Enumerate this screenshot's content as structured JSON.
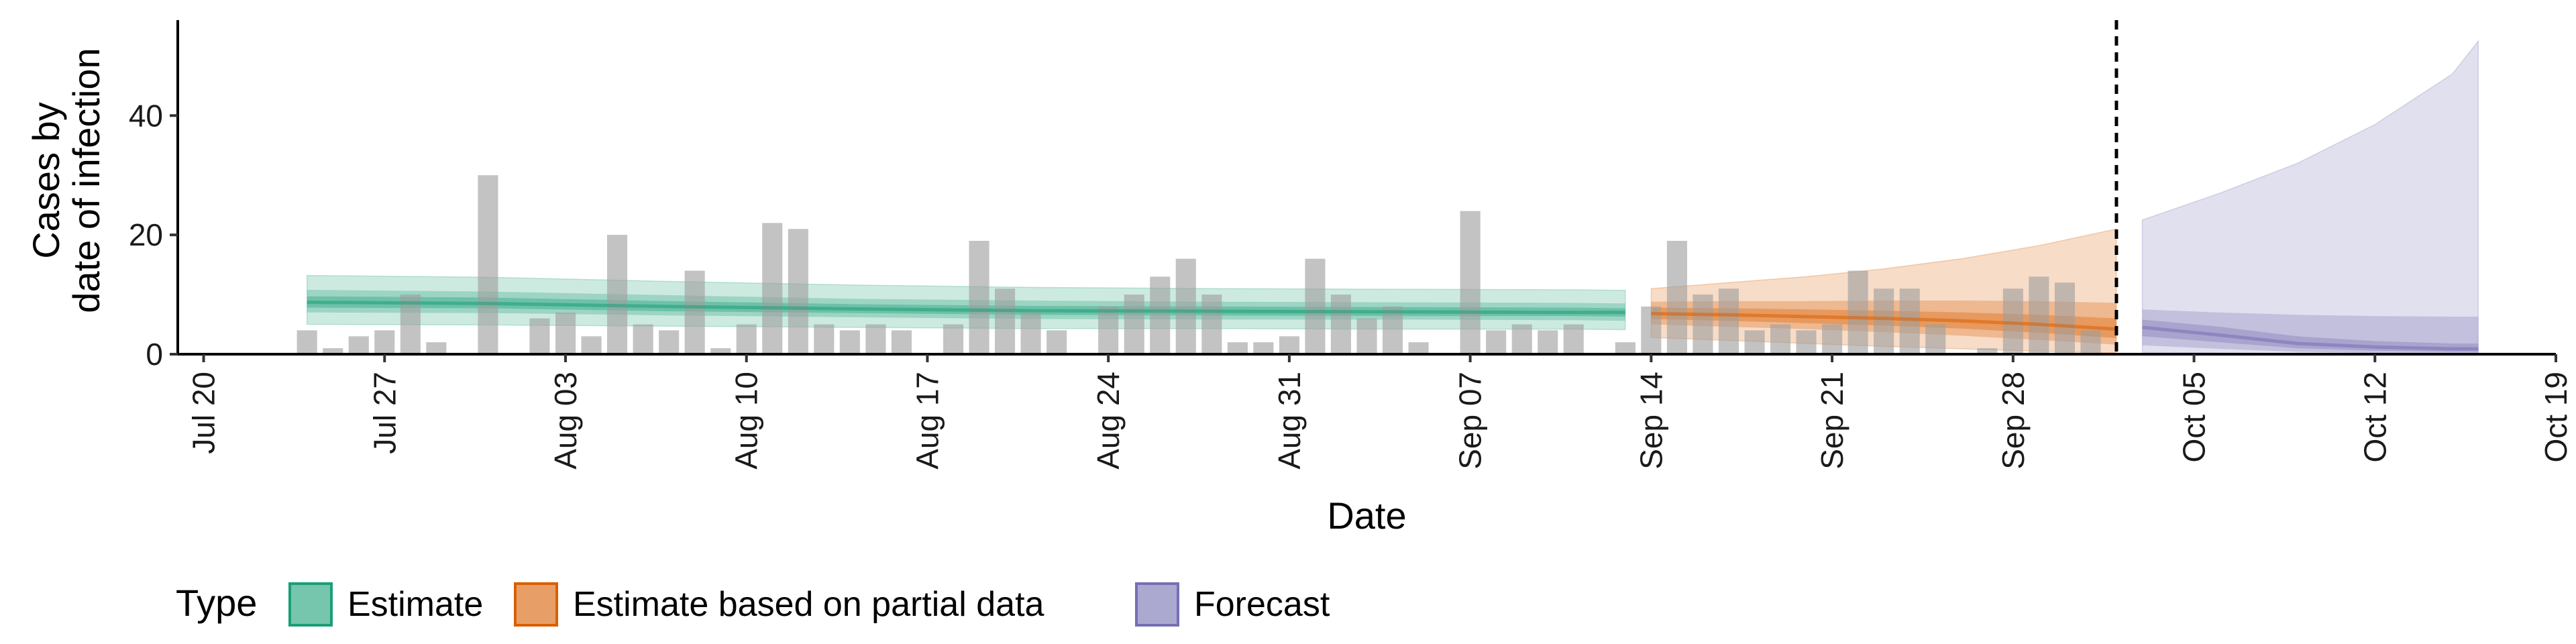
{
  "chart_data": {
    "type": "bar",
    "xlabel": "Date",
    "ylabel_lines": [
      "Cases by",
      "date of infection"
    ],
    "x_range": [
      "2020-07-19",
      "2020-10-19"
    ],
    "ylim": [
      0,
      56
    ],
    "y_ticks": [
      0,
      20,
      40
    ],
    "x_ticks": [
      {
        "date": "2020-07-20",
        "label": "Jul 20"
      },
      {
        "date": "2020-07-27",
        "label": "Jul 27"
      },
      {
        "date": "2020-08-03",
        "label": "Aug 03"
      },
      {
        "date": "2020-08-10",
        "label": "Aug 10"
      },
      {
        "date": "2020-08-17",
        "label": "Aug 17"
      },
      {
        "date": "2020-08-24",
        "label": "Aug 24"
      },
      {
        "date": "2020-08-31",
        "label": "Aug 31"
      },
      {
        "date": "2020-09-07",
        "label": "Sep 07"
      },
      {
        "date": "2020-09-14",
        "label": "Sep 14"
      },
      {
        "date": "2020-09-21",
        "label": "Sep 21"
      },
      {
        "date": "2020-09-28",
        "label": "Sep 28"
      },
      {
        "date": "2020-10-05",
        "label": "Oct 05"
      },
      {
        "date": "2020-10-12",
        "label": "Oct 12"
      },
      {
        "date": "2020-10-19",
        "label": "Oct 19"
      }
    ],
    "bars_start_date": "2020-07-24",
    "bar_values": [
      4,
      1,
      3,
      4,
      10,
      2,
      0,
      30,
      0,
      6,
      7,
      3,
      20,
      5,
      4,
      14,
      1,
      5,
      22,
      21,
      5,
      4,
      5,
      4,
      0,
      5,
      19,
      11,
      7,
      4,
      0,
      8,
      10,
      13,
      16,
      10,
      2,
      2,
      3,
      16,
      10,
      6,
      8,
      2,
      0,
      24,
      4,
      5,
      4,
      5,
      0,
      2,
      8,
      19,
      10,
      11,
      4,
      5,
      4,
      5,
      14,
      11,
      11,
      5,
      0,
      1,
      11,
      13,
      12,
      4
    ],
    "cutoff_date": "2020-10-02",
    "series": [
      {
        "name": "Estimate",
        "color": "#1b9e77",
        "dates": [
          "2020-07-24",
          "2020-07-31",
          "2020-08-07",
          "2020-08-14",
          "2020-08-21",
          "2020-08-28",
          "2020-09-04",
          "2020-09-11",
          "2020-09-13"
        ],
        "median": [
          8.7,
          8.5,
          8.0,
          7.6,
          7.3,
          7.2,
          7.1,
          7.0,
          7.0
        ],
        "inner_lower": [
          7.8,
          7.7,
          7.2,
          6.9,
          6.6,
          6.5,
          6.4,
          6.4,
          6.3
        ],
        "inner_upper": [
          9.7,
          9.5,
          8.9,
          8.4,
          8.1,
          8.0,
          7.9,
          7.8,
          7.7
        ],
        "mid_lower": [
          7.0,
          6.9,
          6.5,
          6.2,
          5.9,
          5.8,
          5.8,
          5.7,
          5.6
        ],
        "mid_upper": [
          10.8,
          10.5,
          9.9,
          9.3,
          9.0,
          8.8,
          8.7,
          8.6,
          8.5
        ],
        "outer_lower": [
          5.0,
          4.9,
          4.7,
          4.5,
          4.3,
          4.3,
          4.2,
          4.2,
          4.1
        ],
        "outer_upper": [
          13.2,
          12.9,
          12.2,
          11.6,
          11.2,
          11.0,
          10.9,
          10.8,
          10.7
        ]
      },
      {
        "name": "Estimate based on partial data",
        "color": "#d95f02",
        "dates": [
          "2020-09-14",
          "2020-09-17",
          "2020-09-20",
          "2020-09-23",
          "2020-09-26",
          "2020-09-29",
          "2020-10-02"
        ],
        "median": [
          6.8,
          6.6,
          6.3,
          6.0,
          5.6,
          5.0,
          4.2
        ],
        "inner_lower": [
          5.9,
          5.6,
          5.2,
          4.8,
          4.3,
          3.6,
          2.7
        ],
        "inner_upper": [
          7.8,
          7.7,
          7.5,
          7.3,
          7.0,
          6.6,
          6.0
        ],
        "mid_lower": [
          5.0,
          4.6,
          4.2,
          3.7,
          3.1,
          2.4,
          1.6
        ],
        "mid_upper": [
          8.8,
          8.9,
          8.9,
          9.0,
          9.0,
          8.9,
          8.6
        ],
        "outer_lower": [
          2.8,
          2.3,
          1.8,
          1.3,
          0.9,
          0.5,
          0.2
        ],
        "outer_upper": [
          11.0,
          12.0,
          13.0,
          14.3,
          16.0,
          18.2,
          21.0
        ]
      },
      {
        "name": "Forecast",
        "color": "#7570b3",
        "dates": [
          "2020-10-03",
          "2020-10-06",
          "2020-10-09",
          "2020-10-12",
          "2020-10-15",
          "2020-10-16"
        ],
        "median": [
          4.5,
          3.2,
          1.8,
          1.2,
          0.9,
          0.9
        ],
        "inner_lower": [
          3.0,
          2.0,
          1.0,
          0.6,
          0.4,
          0.4
        ],
        "inner_upper": [
          5.8,
          4.6,
          3.0,
          2.2,
          1.8,
          1.8
        ],
        "mid_lower": [
          1.5,
          0.9,
          0.4,
          0.2,
          0.1,
          0.1
        ],
        "mid_upper": [
          7.5,
          7.0,
          6.6,
          6.4,
          6.3,
          6.3
        ],
        "outer_lower": [
          0.3,
          0.2,
          0.1,
          0.0,
          0.0,
          0.0
        ],
        "outer_upper": [
          22.5,
          27.0,
          32.0,
          38.5,
          47.0,
          52.5
        ]
      }
    ],
    "legend": {
      "title": "Type",
      "position": "bottom-left",
      "items": [
        "Estimate",
        "Estimate based on partial data",
        "Forecast"
      ]
    },
    "grid": false
  }
}
